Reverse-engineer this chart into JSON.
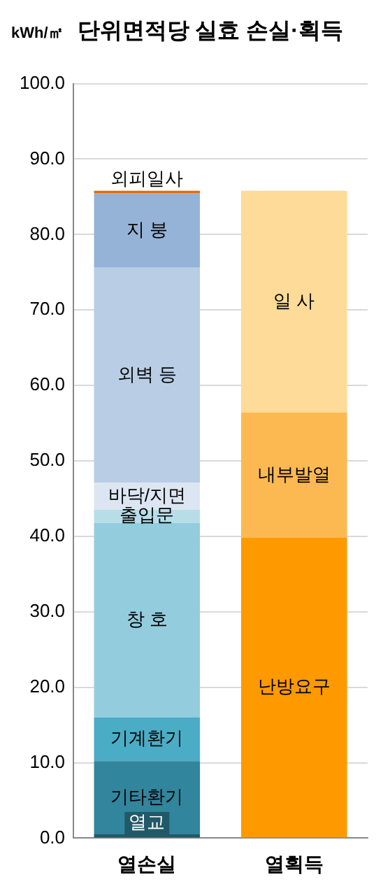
{
  "chart_data": {
    "type": "bar",
    "title": "단위면적당 실효 손실·획득",
    "ylabel": "kWh/㎡",
    "stacked": true,
    "legend": false,
    "grid": "y",
    "categories": [
      "열손실",
      "열획득"
    ],
    "ylim": [
      0,
      100
    ],
    "yticks": [
      {
        "value": 0,
        "label": "0.0"
      },
      {
        "value": 10,
        "label": "10.0"
      },
      {
        "value": 20,
        "label": "20.0"
      },
      {
        "value": 30,
        "label": "30.0"
      },
      {
        "value": 40,
        "label": "40.0"
      },
      {
        "value": 50,
        "label": "50.0"
      },
      {
        "value": 60,
        "label": "60.0"
      },
      {
        "value": 70,
        "label": "70.0"
      },
      {
        "value": 80,
        "label": "80.0"
      },
      {
        "value": 90,
        "label": "90.0"
      },
      {
        "value": 100,
        "label": "100.0"
      }
    ],
    "series": [
      {
        "name": "열교",
        "color": "#215968",
        "values": [
          0.5,
          null
        ]
      },
      {
        "name": "기타환기",
        "color": "#31859c",
        "values": [
          9.7,
          null
        ]
      },
      {
        "name": "기계환기",
        "color": "#4bacc6",
        "values": [
          5.8,
          null
        ]
      },
      {
        "name": "창 호",
        "color": "#93cddd",
        "values": [
          25.8,
          null
        ]
      },
      {
        "name": "출입문",
        "color": "#b7dee8",
        "values": [
          1.7,
          null
        ]
      },
      {
        "name": "바닥/지면",
        "color": "#dce6f2",
        "values": [
          3.6,
          null
        ]
      },
      {
        "name": "외벽 등",
        "color": "#b9cde5",
        "values": [
          28.5,
          null
        ]
      },
      {
        "name": "지 붕",
        "color": "#95b3d7",
        "values": [
          9.9,
          null
        ]
      },
      {
        "name": "외피일사",
        "color": "#e46c0a",
        "values": [
          0.3,
          null
        ]
      },
      {
        "name": "난방요구",
        "color": "#ff9900",
        "values": [
          null,
          39.8
        ]
      },
      {
        "name": "내부발열",
        "color": "#fdb951",
        "values": [
          null,
          16.6
        ]
      },
      {
        "name": "일 사",
        "color": "#fedb98",
        "values": [
          null,
          29.4
        ]
      }
    ]
  }
}
